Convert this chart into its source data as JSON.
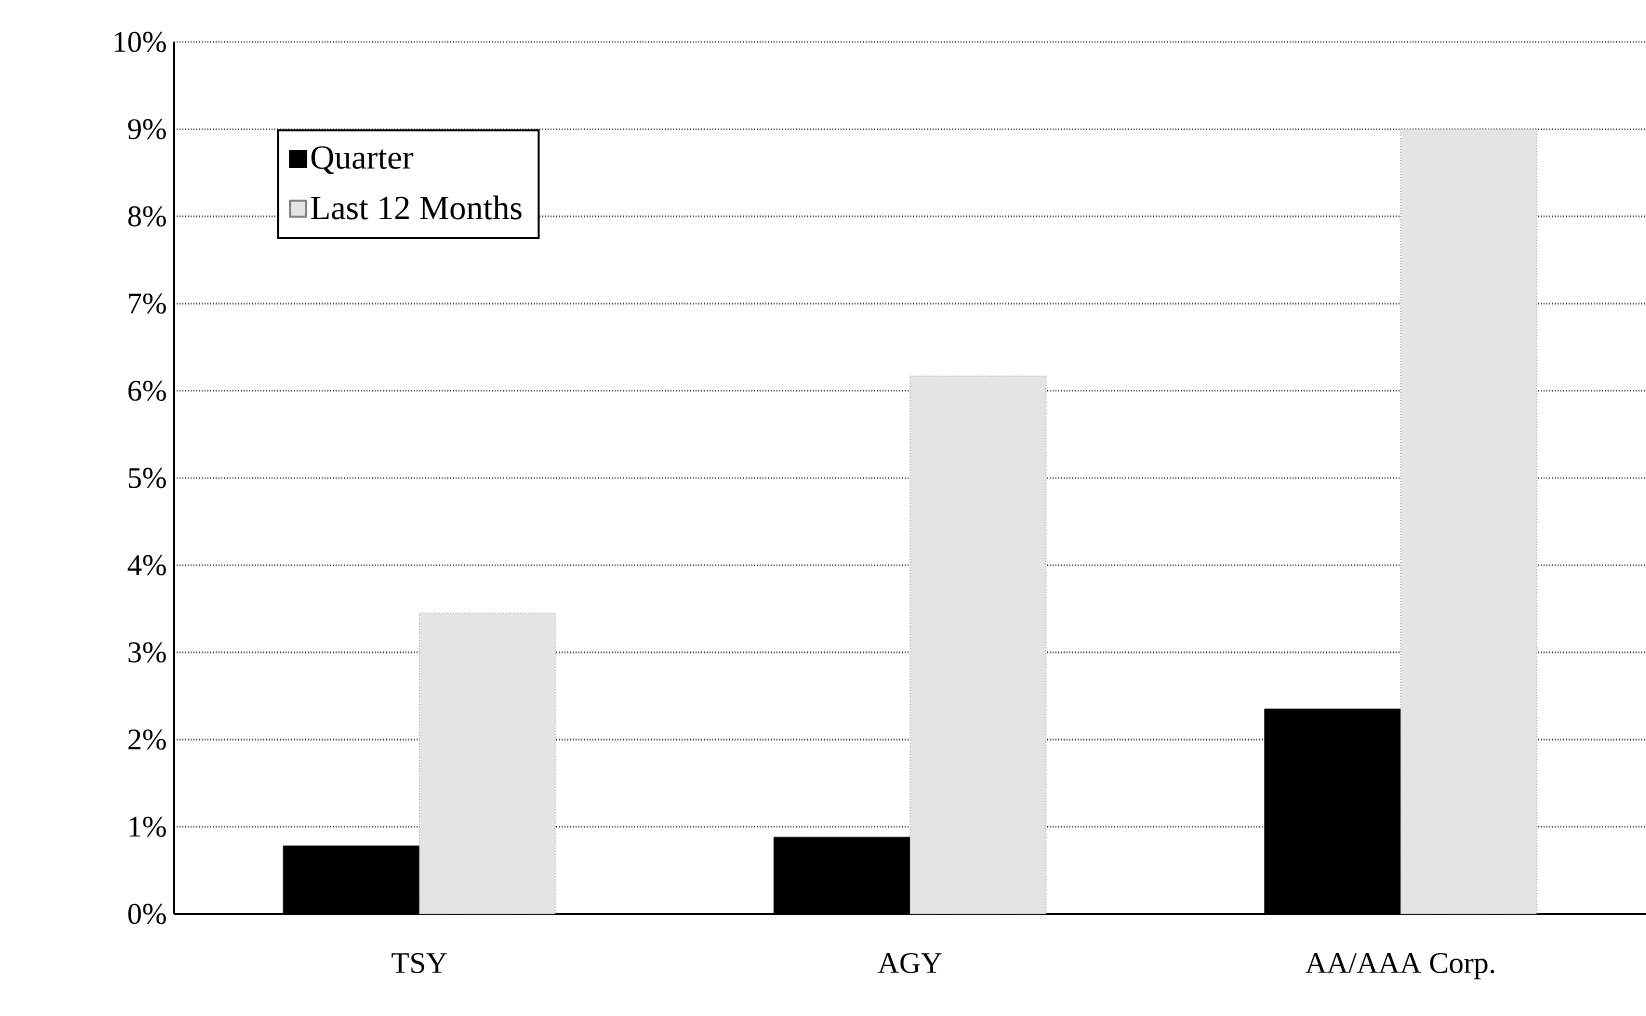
{
  "chart_data": {
    "type": "bar",
    "categories": [
      "TSY",
      "AGY",
      "AA/AAA Corp."
    ],
    "series": [
      {
        "name": "Quarter",
        "color": "#000000",
        "values": [
          0.78,
          0.88,
          2.35
        ]
      },
      {
        "name": "Last 12 Months",
        "color": "#e4e4e4",
        "values": [
          3.45,
          6.17,
          9.0
        ]
      }
    ],
    "ylim": [
      0,
      10
    ],
    "yticks": [
      {
        "value": 0,
        "label": "0%"
      },
      {
        "value": 1,
        "label": "1%"
      },
      {
        "value": 2,
        "label": "2%"
      },
      {
        "value": 3,
        "label": "3%"
      },
      {
        "value": 4,
        "label": "4%"
      },
      {
        "value": 5,
        "label": "5%"
      },
      {
        "value": 6,
        "label": "6%"
      },
      {
        "value": 7,
        "label": "7%"
      },
      {
        "value": 8,
        "label": "8%"
      },
      {
        "value": 9,
        "label": "9%"
      },
      {
        "value": 10,
        "label": "10%"
      }
    ],
    "grid": "y",
    "legend": "top left"
  }
}
